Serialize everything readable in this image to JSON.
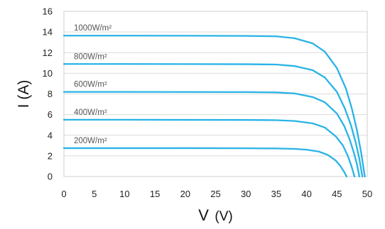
{
  "chart_data": {
    "type": "line",
    "title": "",
    "xlabel": {
      "symbol": "V",
      "unit": "(V)"
    },
    "ylabel": "I (A)",
    "xlim": [
      0,
      50
    ],
    "ylim": [
      0,
      16
    ],
    "xticks": [
      0,
      5,
      10,
      15,
      20,
      25,
      30,
      35,
      40,
      45,
      50
    ],
    "yticks": [
      0,
      2,
      4,
      6,
      8,
      10,
      12,
      14,
      16
    ],
    "grid": {
      "x": false,
      "y": true
    },
    "line_color": "#29b3e6",
    "series": [
      {
        "name": "1000W/m²",
        "x": [
          0,
          10,
          20,
          30,
          35,
          38,
          41,
          43,
          45,
          46.5,
          47.5,
          48.3,
          49,
          49.6
        ],
        "y": [
          13.65,
          13.65,
          13.64,
          13.62,
          13.58,
          13.4,
          12.9,
          12.1,
          10.5,
          8.5,
          6.5,
          4.5,
          2.3,
          0
        ]
      },
      {
        "name": "800W/m²",
        "x": [
          0,
          10,
          20,
          30,
          35,
          38,
          41,
          43,
          45,
          46.3,
          47.3,
          48.1,
          48.7,
          49.2
        ],
        "y": [
          10.9,
          10.9,
          10.89,
          10.88,
          10.85,
          10.7,
          10.3,
          9.6,
          8.2,
          6.6,
          5.0,
          3.3,
          1.7,
          0
        ]
      },
      {
        "name": "600W/m²",
        "x": [
          0,
          10,
          20,
          30,
          35,
          38,
          41,
          43,
          45,
          46.2,
          47.1,
          47.8,
          48.3,
          48.7
        ],
        "y": [
          8.2,
          8.2,
          8.19,
          8.18,
          8.15,
          8.05,
          7.7,
          7.2,
          6.1,
          4.9,
          3.6,
          2.3,
          1.2,
          0
        ]
      },
      {
        "name": "400W/m²",
        "x": [
          0,
          10,
          20,
          30,
          35,
          38,
          41,
          43,
          44.8,
          46,
          46.8,
          47.4,
          47.9
        ],
        "y": [
          5.5,
          5.5,
          5.49,
          5.48,
          5.46,
          5.38,
          5.15,
          4.75,
          3.9,
          3.0,
          2.0,
          1.0,
          0
        ]
      },
      {
        "name": "200W/m²",
        "x": [
          0,
          10,
          20,
          30,
          35,
          38,
          40,
          42,
          43.5,
          44.8,
          45.6,
          46.2,
          46.6
        ],
        "y": [
          2.75,
          2.75,
          2.75,
          2.74,
          2.72,
          2.68,
          2.6,
          2.42,
          2.1,
          1.55,
          1.0,
          0.45,
          0
        ]
      }
    ]
  }
}
